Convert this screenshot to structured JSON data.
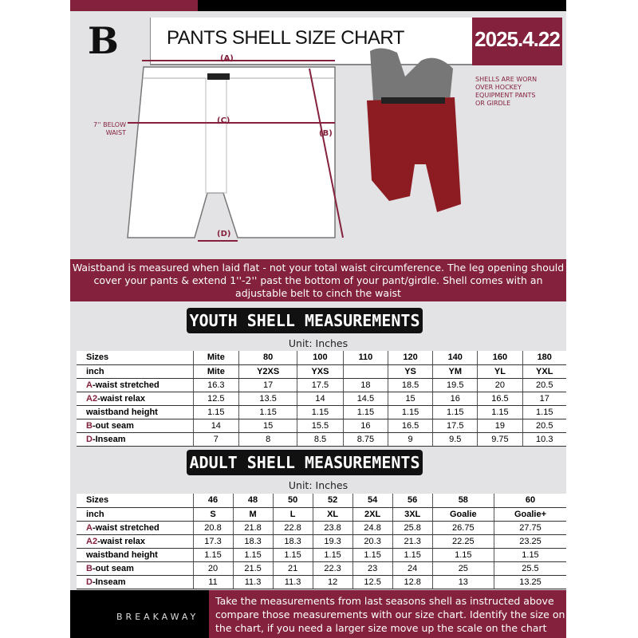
{
  "header": {
    "title": "PANTS SHELL SIZE CHART",
    "date": "2025.4.22",
    "logo": "B"
  },
  "diagram": {
    "label_a": "(A)",
    "label_b": "(B)",
    "label_c": "(C)",
    "label_d": "(D)",
    "below_waist": "7'' BELOW WAIST",
    "shell_note": "SHELLS ARE WORN OVER HOCKEY EQUIPMENT PANTS OR GIRDLE"
  },
  "colors": {
    "accent": "#84213c",
    "dark": "#000000",
    "background": "#e3e3e6"
  },
  "instructions": "Waistband is measured when laid flat - not your total waist circumference. The leg opening should cover your pants & extend 1''-2'' past the bottom of your pant/girdle. Shell comes with an adjustable belt to cinch the waist",
  "youth": {
    "title": "YOUTH SHELL MEASUREMENTS",
    "unit": "Unit: Inches",
    "rows": [
      {
        "prefix": "",
        "label": "Sizes",
        "values": [
          "Mite",
          "80",
          "100",
          "110",
          "120",
          "140",
          "160",
          "180"
        ]
      },
      {
        "prefix": "",
        "label": "inch",
        "values": [
          "Mite",
          "Y2XS",
          "YXS",
          "",
          "YS",
          "YM",
          "YL",
          "YXL"
        ]
      },
      {
        "prefix": "A",
        "label": "-waist stretched",
        "values": [
          "16.3",
          "17",
          "17.5",
          "18",
          "18.5",
          "19.5",
          "20",
          "20.5"
        ]
      },
      {
        "prefix": "A2",
        "label": "-waist relax",
        "values": [
          "12.5",
          "13.5",
          "14",
          "14.5",
          "15",
          "16",
          "16.5",
          "17"
        ]
      },
      {
        "prefix": "",
        "label": "waistband height",
        "values": [
          "1.15",
          "1.15",
          "1.15",
          "1.15",
          "1.15",
          "1.15",
          "1.15",
          "1.15"
        ]
      },
      {
        "prefix": "B",
        "label": "-out seam",
        "values": [
          "14",
          "15",
          "15.5",
          "16",
          "16.5",
          "17.5",
          "19",
          "20.5"
        ]
      },
      {
        "prefix": "D",
        "label": "-Inseam",
        "values": [
          "7",
          "8",
          "8.5",
          "8.75",
          "9",
          "9.5",
          "9.75",
          "10.3"
        ]
      }
    ]
  },
  "adult": {
    "title": "ADULT SHELL MEASUREMENTS",
    "unit": "Unit: Inches",
    "rows": [
      {
        "prefix": "",
        "label": "Sizes",
        "values": [
          "46",
          "48",
          "50",
          "52",
          "54",
          "56",
          "58",
          "60"
        ]
      },
      {
        "prefix": "",
        "label": "inch",
        "values": [
          "S",
          "M",
          "L",
          "XL",
          "2XL",
          "3XL",
          "Goalie",
          "Goalie+"
        ]
      },
      {
        "prefix": "A",
        "label": "-waist stretched",
        "values": [
          "20.8",
          "21.8",
          "22.8",
          "23.8",
          "24.8",
          "25.8",
          "26.75",
          "27.75"
        ]
      },
      {
        "prefix": "A2",
        "label": "-waist relax",
        "values": [
          "17.3",
          "18.3",
          "18.3",
          "19.3",
          "20.3",
          "21.3",
          "22.25",
          "23.25"
        ]
      },
      {
        "prefix": "",
        "label": "waistband height",
        "values": [
          "1.15",
          "1.15",
          "1.15",
          "1.15",
          "1.15",
          "1.15",
          "1.15",
          "1.15"
        ]
      },
      {
        "prefix": "B",
        "label": "-out seam",
        "values": [
          "20",
          "21.5",
          "21",
          "22.3",
          "23",
          "24",
          "25",
          "25.5"
        ]
      },
      {
        "prefix": "D",
        "label": "-Inseam",
        "values": [
          "11",
          "11.3",
          "11.3",
          "12",
          "12.5",
          "12.8",
          "13",
          "13.25"
        ]
      }
    ]
  },
  "footer": {
    "brand": "BREAKAWAY",
    "text": "Take the measurements from last seasons shell as instructed above compare those measurements  with our size chart. Identify the size on the chart, if you need a larger size move up the scale on the chart"
  }
}
